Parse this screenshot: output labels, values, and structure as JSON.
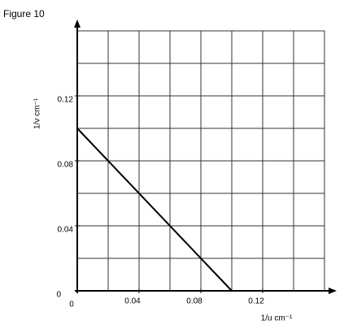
{
  "chart_data": {
    "type": "line",
    "title": "Figure 10",
    "x_label": "1/u cm⁻¹",
    "y_label": "1/v cm⁻¹",
    "x": [
      0,
      0.1
    ],
    "series": [
      {
        "color": "#000000",
        "values": [
          0.1,
          0
        ]
      }
    ],
    "xlim": [
      0,
      0.16
    ],
    "ylim": [
      0,
      0.16
    ],
    "xticks": [
      0,
      0.04,
      0.08,
      0.12
    ],
    "yticks": [
      0,
      0.04,
      0.08,
      0.12
    ],
    "xgrid": [
      0,
      0.02,
      0.04,
      0.06,
      0.08,
      0.1,
      0.12,
      0.14,
      0.16
    ],
    "ygrid": [
      0,
      0.02,
      0.04,
      0.06,
      0.08,
      0.1,
      0.12,
      0.14,
      0.16
    ],
    "grid": true
  }
}
